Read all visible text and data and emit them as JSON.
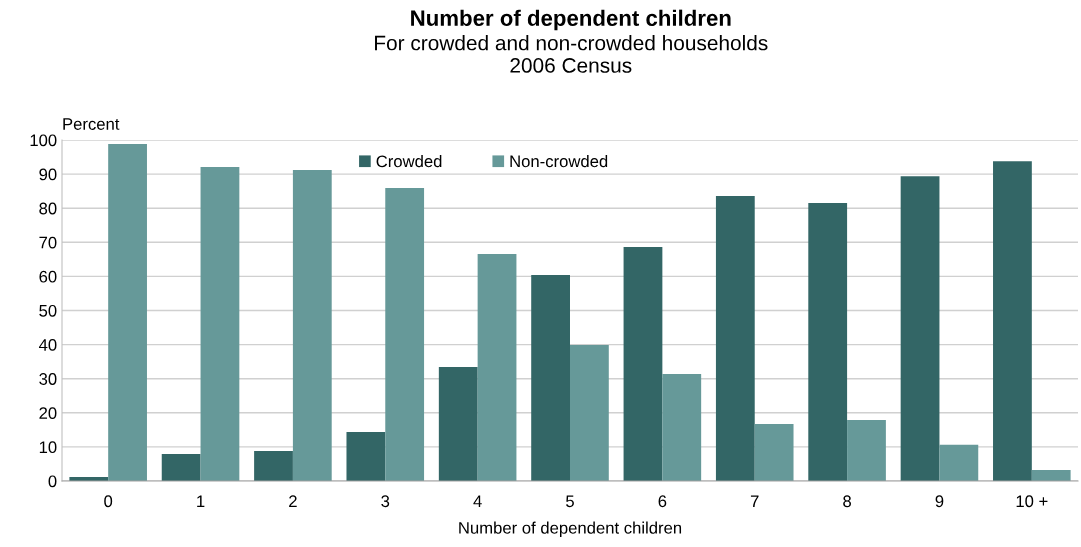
{
  "chart_data": {
    "type": "bar",
    "title": "Number of dependent children",
    "subtitle": "For crowded and non-crowded households\n2006 Census",
    "xlabel": "Number of dependent children",
    "ylabel": "Percent",
    "categories": [
      "0",
      "1",
      "2",
      "3",
      "4",
      "5",
      "6",
      "7",
      "8",
      "9",
      "10 +"
    ],
    "series": [
      {
        "name": "Crowded",
        "color": "#336666",
        "values": [
          1.2,
          7.9,
          8.8,
          14.4,
          33.4,
          60.4,
          68.6,
          83.6,
          81.5,
          89.4,
          93.8
        ]
      },
      {
        "name": "Non-crowded",
        "color": "#669999",
        "values": [
          98.8,
          92.1,
          91.2,
          85.9,
          66.6,
          39.9,
          31.4,
          16.7,
          17.9,
          10.6,
          3.2
        ]
      }
    ],
    "ylim": [
      0,
      100
    ],
    "yticks": [
      0,
      10,
      20,
      30,
      40,
      50,
      60,
      70,
      80,
      90,
      100
    ],
    "grid": "y",
    "legend": "top"
  }
}
